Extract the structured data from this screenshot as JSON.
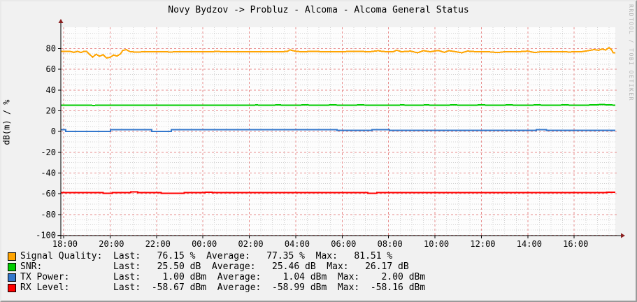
{
  "title": "Novy Bydzov -> Probluz - Alcoma - Alcoma General Status",
  "watermark": "RRDTOOL / TOBI OETIKER",
  "y_axis_label": "dB(m) / %",
  "legend": {
    "rows": [
      {
        "color": "#FFA400",
        "text": "Signal Quality:  Last:   76.15 %  Average:   77.35 %  Max:   81.51 %"
      },
      {
        "color": "#00CC00",
        "text": "SNR:             Last:   25.50 dB  Average:   25.46 dB  Max:   26.17 dB"
      },
      {
        "color": "#3377CC",
        "text": "TX Power:        Last:    1.00 dBm  Average:    1.04 dBm  Max:    2.00 dBm"
      },
      {
        "color": "#FF0000",
        "text": "RX Level:        Last:  -58.67 dBm  Average:  -58.99 dBm  Max:  -58.16 dBm"
      }
    ]
  },
  "chart_data": {
    "type": "line",
    "title": "Novy Bydzov -> Probluz - Alcoma - Alcoma General Status",
    "xlabel": "",
    "ylabel": "dB(m) / %",
    "x_unit": "hours since 18:00",
    "xlim": [
      -0.12,
      23.77
    ],
    "ylim": [
      -100.3,
      100.6
    ],
    "grid": {
      "major_step_y": 20,
      "minor_step_y": 5,
      "major_step_x_hours": 2,
      "minor_step_x_hours": 0.5,
      "major_color": "#e88d8d",
      "minor_color": "#d2d2d2"
    },
    "axis_color": "#000000",
    "arrow_color": "#8b2020",
    "legend_position": "bottom",
    "xticks": [
      {
        "t": 0,
        "label": "18:00"
      },
      {
        "t": 2,
        "label": "20:00"
      },
      {
        "t": 4,
        "label": "22:00"
      },
      {
        "t": 6,
        "label": "00:00"
      },
      {
        "t": 8,
        "label": "02:00"
      },
      {
        "t": 10,
        "label": "04:00"
      },
      {
        "t": 12,
        "label": "06:00"
      },
      {
        "t": 14,
        "label": "08:00"
      },
      {
        "t": 16,
        "label": "10:00"
      },
      {
        "t": 18,
        "label": "12:00"
      },
      {
        "t": 20,
        "label": "14:00"
      },
      {
        "t": 22,
        "label": "16:00"
      }
    ],
    "yticks": [
      {
        "v": 80,
        "label": "80"
      },
      {
        "v": 60,
        "label": "60"
      },
      {
        "v": 40,
        "label": "40"
      },
      {
        "v": 20,
        "label": "20"
      },
      {
        "v": 0,
        "label": "0"
      },
      {
        "v": -20,
        "label": "-20"
      },
      {
        "v": -40,
        "label": "-40"
      },
      {
        "v": -60,
        "label": "-60"
      },
      {
        "v": -80,
        "label": "-80"
      },
      {
        "v": -100,
        "label": "-100"
      }
    ],
    "series": [
      {
        "name": "Signal Quality",
        "unit": "%",
        "color": "#FFA400",
        "last": 76.15,
        "average": 77.35,
        "max": 81.51,
        "points": [
          [
            -0.12,
            77.2
          ],
          [
            0.3,
            77.2
          ],
          [
            0.45,
            76.4
          ],
          [
            0.6,
            77.4
          ],
          [
            0.75,
            76.2
          ],
          [
            0.85,
            77.2
          ],
          [
            1.0,
            77.2
          ],
          [
            1.1,
            74.8
          ],
          [
            1.25,
            71.8
          ],
          [
            1.4,
            74.6
          ],
          [
            1.55,
            72.6
          ],
          [
            1.7,
            74.2
          ],
          [
            1.85,
            71.0
          ],
          [
            2.0,
            71.6
          ],
          [
            2.15,
            73.8
          ],
          [
            2.3,
            72.8
          ],
          [
            2.45,
            75.0
          ],
          [
            2.55,
            78.2
          ],
          [
            2.7,
            79.0
          ],
          [
            2.85,
            77.2
          ],
          [
            3.1,
            76.6
          ],
          [
            3.5,
            77.0
          ],
          [
            4.0,
            77.0
          ],
          [
            4.6,
            76.8
          ],
          [
            5.2,
            77.0
          ],
          [
            5.9,
            77.0
          ],
          [
            6.6,
            77.2
          ],
          [
            7.3,
            77.0
          ],
          [
            8.0,
            77.0
          ],
          [
            8.7,
            77.1
          ],
          [
            9.4,
            77.0
          ],
          [
            9.65,
            77.4
          ],
          [
            9.75,
            78.8
          ],
          [
            9.95,
            77.6
          ],
          [
            10.2,
            77.1
          ],
          [
            10.8,
            77.3
          ],
          [
            11.4,
            77.0
          ],
          [
            12.0,
            77.1
          ],
          [
            12.6,
            77.4
          ],
          [
            13.2,
            77.0
          ],
          [
            13.55,
            78.0
          ],
          [
            13.75,
            77.2
          ],
          [
            14.2,
            77.0
          ],
          [
            14.35,
            78.4
          ],
          [
            14.55,
            77.0
          ],
          [
            14.95,
            77.6
          ],
          [
            15.25,
            76.0
          ],
          [
            15.5,
            78.0
          ],
          [
            15.8,
            77.0
          ],
          [
            16.15,
            78.2
          ],
          [
            16.4,
            76.4
          ],
          [
            16.6,
            78.0
          ],
          [
            16.9,
            77.0
          ],
          [
            17.15,
            76.0
          ],
          [
            17.4,
            77.6
          ],
          [
            17.8,
            77.0
          ],
          [
            18.3,
            77.0
          ],
          [
            18.7,
            76.2
          ],
          [
            19.0,
            77.0
          ],
          [
            19.6,
            77.0
          ],
          [
            20.0,
            77.6
          ],
          [
            20.3,
            76.2
          ],
          [
            20.55,
            77.0
          ],
          [
            21.2,
            77.0
          ],
          [
            21.8,
            76.8
          ],
          [
            22.3,
            77.0
          ],
          [
            22.6,
            78.0
          ],
          [
            22.85,
            79.0
          ],
          [
            23.05,
            78.4
          ],
          [
            23.2,
            79.6
          ],
          [
            23.35,
            78.6
          ],
          [
            23.5,
            81.0
          ],
          [
            23.6,
            79.0
          ],
          [
            23.68,
            76.0
          ],
          [
            23.77,
            76.15
          ]
        ]
      },
      {
        "name": "SNR",
        "unit": "dB",
        "color": "#00CC00",
        "last": 25.5,
        "average": 25.46,
        "max": 26.17,
        "points": [
          [
            -0.12,
            25.5
          ],
          [
            0.4,
            25.3
          ],
          [
            0.8,
            25.5
          ],
          [
            1.3,
            25.2
          ],
          [
            1.8,
            25.5
          ],
          [
            2.3,
            25.3
          ],
          [
            2.8,
            25.5
          ],
          [
            3.4,
            25.4
          ],
          [
            4.0,
            25.5
          ],
          [
            4.5,
            25.3
          ],
          [
            5.0,
            25.5
          ],
          [
            5.6,
            25.4
          ],
          [
            6.2,
            25.5
          ],
          [
            6.8,
            25.4
          ],
          [
            7.4,
            25.5
          ],
          [
            7.9,
            25.3
          ],
          [
            8.3,
            25.6
          ],
          [
            8.7,
            25.4
          ],
          [
            9.2,
            25.6
          ],
          [
            9.8,
            25.5
          ],
          [
            10.4,
            25.6
          ],
          [
            11.0,
            25.5
          ],
          [
            11.6,
            25.6
          ],
          [
            12.2,
            25.5
          ],
          [
            12.8,
            25.6
          ],
          [
            13.4,
            25.5
          ],
          [
            14.0,
            25.4
          ],
          [
            14.6,
            25.6
          ],
          [
            15.1,
            25.4
          ],
          [
            15.6,
            25.6
          ],
          [
            16.2,
            25.5
          ],
          [
            16.8,
            25.6
          ],
          [
            17.4,
            25.5
          ],
          [
            18.0,
            25.6
          ],
          [
            18.6,
            25.5
          ],
          [
            19.2,
            25.6
          ],
          [
            19.8,
            25.5
          ],
          [
            20.4,
            25.6
          ],
          [
            21.0,
            25.5
          ],
          [
            21.6,
            25.6
          ],
          [
            22.2,
            25.5
          ],
          [
            22.8,
            25.6
          ],
          [
            23.2,
            26.1
          ],
          [
            23.45,
            25.8
          ],
          [
            23.77,
            25.5
          ]
        ]
      },
      {
        "name": "TX Power",
        "unit": "dBm",
        "color": "#3377CC",
        "last": 1.0,
        "average": 1.04,
        "max": 2.0,
        "points": [
          [
            -0.12,
            2
          ],
          [
            0.09,
            2
          ],
          [
            0.09,
            0
          ],
          [
            2.02,
            0
          ],
          [
            2.02,
            2
          ],
          [
            3.8,
            2
          ],
          [
            3.8,
            0
          ],
          [
            4.64,
            0
          ],
          [
            4.64,
            2
          ],
          [
            11.78,
            2
          ],
          [
            11.78,
            1
          ],
          [
            13.28,
            1
          ],
          [
            13.28,
            2
          ],
          [
            14.04,
            2
          ],
          [
            14.04,
            1
          ],
          [
            20.36,
            1
          ],
          [
            20.36,
            2
          ],
          [
            20.81,
            2
          ],
          [
            20.81,
            1
          ],
          [
            23.77,
            1
          ]
        ]
      },
      {
        "name": "RX Level",
        "unit": "dBm",
        "color": "#FF0000",
        "last": -58.67,
        "average": -58.99,
        "max": -58.16,
        "points": [
          [
            -0.12,
            -58.9
          ],
          [
            1.7,
            -58.9
          ],
          [
            1.7,
            -59.6
          ],
          [
            2.1,
            -59.6
          ],
          [
            2.1,
            -58.9
          ],
          [
            2.9,
            -58.9
          ],
          [
            2.9,
            -58.3
          ],
          [
            3.2,
            -58.3
          ],
          [
            3.2,
            -58.9
          ],
          [
            4.2,
            -58.9
          ],
          [
            4.2,
            -59.5
          ],
          [
            5.2,
            -59.5
          ],
          [
            5.2,
            -58.9
          ],
          [
            6.1,
            -58.9
          ],
          [
            6.1,
            -58.4
          ],
          [
            6.4,
            -58.4
          ],
          [
            6.4,
            -58.9
          ],
          [
            13.1,
            -58.9
          ],
          [
            13.1,
            -59.4
          ],
          [
            13.5,
            -59.4
          ],
          [
            13.5,
            -58.9
          ],
          [
            23.4,
            -58.9
          ],
          [
            23.4,
            -58.67
          ],
          [
            23.77,
            -58.67
          ]
        ]
      }
    ]
  }
}
